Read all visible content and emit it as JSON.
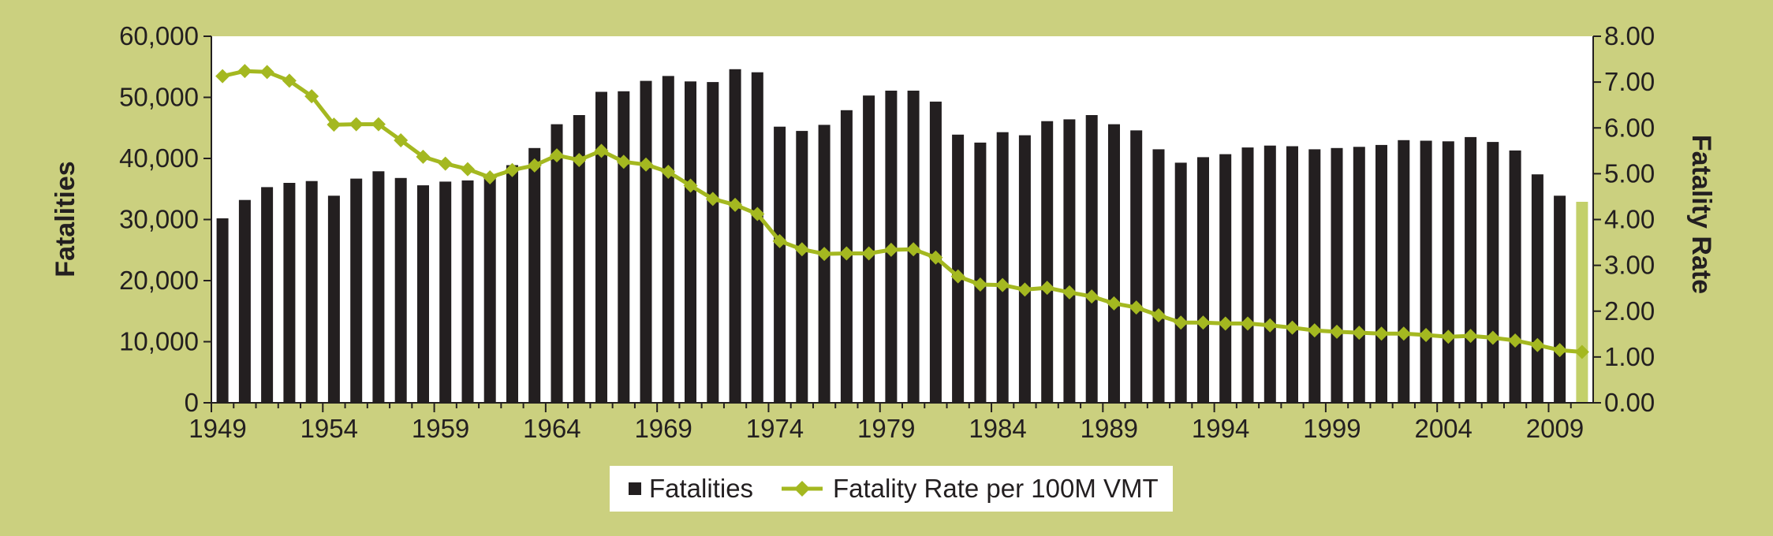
{
  "chart_data": {
    "type": "bar",
    "title": "",
    "x": [
      1949,
      1950,
      1951,
      1952,
      1953,
      1954,
      1955,
      1956,
      1957,
      1958,
      1959,
      1960,
      1961,
      1962,
      1963,
      1964,
      1965,
      1966,
      1967,
      1968,
      1969,
      1970,
      1971,
      1972,
      1973,
      1974,
      1975,
      1976,
      1977,
      1978,
      1979,
      1980,
      1981,
      1982,
      1983,
      1984,
      1985,
      1986,
      1987,
      1988,
      1989,
      1990,
      1991,
      1992,
      1993,
      1994,
      1995,
      1996,
      1997,
      1998,
      1999,
      2000,
      2001,
      2002,
      2003,
      2004,
      2005,
      2006,
      2007,
      2008,
      2009,
      2010
    ],
    "x_tick_labels": [
      "1949",
      "1954",
      "1959",
      "1964",
      "1969",
      "1974",
      "1979",
      "1984",
      "1989",
      "1994",
      "1999",
      "2004",
      "2009"
    ],
    "series": [
      {
        "name": "Fatalities",
        "kind": "bar",
        "axis": "left",
        "color": "#231f20",
        "highlight_color": "#c3d06a",
        "highlight_index": 61,
        "values": [
          30200,
          33200,
          35300,
          36000,
          36300,
          33900,
          36700,
          37900,
          36800,
          35600,
          36200,
          36400,
          37000,
          38900,
          41700,
          45600,
          47100,
          50900,
          51000,
          52700,
          53500,
          52600,
          52500,
          54600,
          54100,
          45200,
          44500,
          45500,
          47900,
          50300,
          51100,
          51100,
          49300,
          43900,
          42600,
          44300,
          43800,
          46100,
          46400,
          47100,
          45600,
          44600,
          41500,
          39300,
          40200,
          40700,
          41800,
          42100,
          42000,
          41500,
          41700,
          41900,
          42200,
          43000,
          42900,
          42800,
          43500,
          42700,
          41300,
          37400,
          33900,
          32900
        ]
      },
      {
        "name": "Fatality Rate per 100M VMT",
        "kind": "line",
        "axis": "right",
        "color": "#a4b820",
        "values": [
          7.13,
          7.24,
          7.22,
          7.03,
          6.69,
          6.07,
          6.08,
          6.08,
          5.73,
          5.37,
          5.22,
          5.1,
          4.92,
          5.08,
          5.18,
          5.4,
          5.3,
          5.5,
          5.26,
          5.2,
          5.04,
          4.74,
          4.45,
          4.32,
          4.12,
          3.53,
          3.35,
          3.25,
          3.26,
          3.26,
          3.34,
          3.35,
          3.17,
          2.76,
          2.58,
          2.57,
          2.47,
          2.51,
          2.41,
          2.32,
          2.17,
          2.08,
          1.91,
          1.75,
          1.75,
          1.73,
          1.73,
          1.69,
          1.64,
          1.58,
          1.55,
          1.53,
          1.51,
          1.51,
          1.48,
          1.44,
          1.46,
          1.42,
          1.36,
          1.26,
          1.15,
          1.11
        ]
      }
    ],
    "ylabel": "Fatalities",
    "ylim": [
      0,
      60000
    ],
    "yticks": [
      "0",
      "10,000",
      "20,000",
      "30,000",
      "40,000",
      "50,000",
      "60,000"
    ],
    "y2label": "Fatality Rate",
    "y2lim": [
      0,
      8
    ],
    "y2ticks": [
      "0.00",
      "1.00",
      "2.00",
      "3.00",
      "4.00",
      "5.00",
      "6.00",
      "7.00",
      "8.00"
    ],
    "legend_position": "bottom-center",
    "grid": false
  }
}
